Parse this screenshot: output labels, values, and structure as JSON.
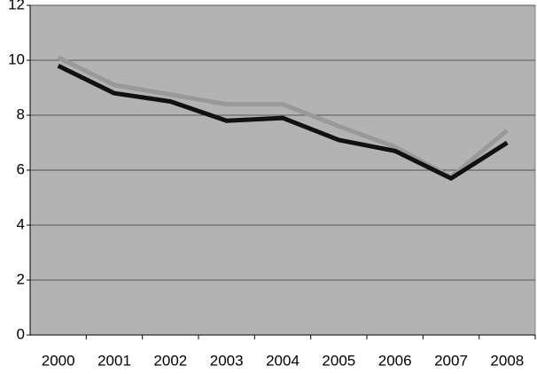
{
  "chart_data": {
    "type": "line",
    "categories": [
      "2000",
      "2001",
      "2002",
      "2003",
      "2004",
      "2005",
      "2006",
      "2007",
      "2008"
    ],
    "series": [
      {
        "color": "#999999",
        "values": [
          10.1,
          9.1,
          8.75,
          8.4,
          8.4,
          7.6,
          6.85,
          5.75,
          7.45
        ]
      },
      {
        "color": "#111111",
        "values": [
          9.8,
          8.8,
          8.5,
          7.8,
          7.9,
          7.1,
          6.7,
          5.7,
          7.0
        ]
      }
    ],
    "ylim": [
      0,
      12
    ],
    "yticks": [
      0,
      2,
      4,
      6,
      8,
      10,
      12
    ],
    "grid": true,
    "plot_background": "#b3b3b3"
  }
}
